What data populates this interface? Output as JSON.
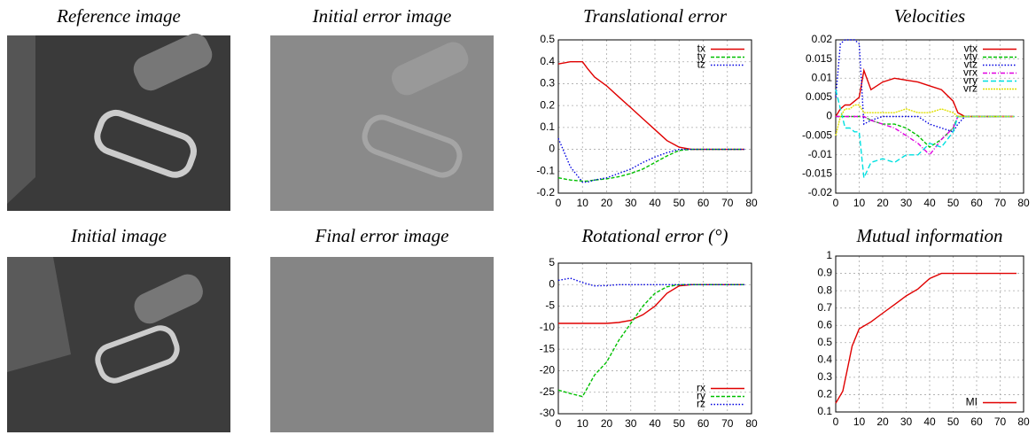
{
  "images": [
    {
      "title": "Reference image"
    },
    {
      "title": "Initial error image"
    },
    {
      "title": "Initial image"
    },
    {
      "title": "Final error image"
    }
  ],
  "chart_data": [
    {
      "type": "line",
      "title": "Translational error",
      "legend": "top-right",
      "grid": true,
      "xlim": [
        0,
        80
      ],
      "xticks": [
        0,
        10,
        20,
        30,
        40,
        50,
        60,
        70,
        80
      ],
      "ylim": [
        -0.2,
        0.5
      ],
      "yticks": [
        -0.2,
        -0.1,
        0,
        0.1,
        0.2,
        0.3,
        0.4,
        0.5
      ],
      "x": [
        0,
        5,
        10,
        12,
        15,
        20,
        25,
        30,
        35,
        40,
        45,
        50,
        55,
        60,
        65,
        70,
        75,
        77
      ],
      "series": [
        {
          "name": "tx",
          "color": "#e00000",
          "values": [
            0.39,
            0.4,
            0.4,
            0.37,
            0.33,
            0.29,
            0.24,
            0.19,
            0.14,
            0.09,
            0.04,
            0.01,
            0,
            0,
            0,
            0,
            0,
            0
          ]
        },
        {
          "name": "ty",
          "color": "#00c000",
          "values": [
            -0.13,
            -0.14,
            -0.145,
            -0.145,
            -0.14,
            -0.135,
            -0.125,
            -0.11,
            -0.09,
            -0.06,
            -0.03,
            -0.005,
            0,
            0,
            0,
            0,
            0,
            0
          ]
        },
        {
          "name": "tz",
          "color": "#0000e0",
          "values": [
            0.05,
            -0.08,
            -0.15,
            -0.15,
            -0.14,
            -0.13,
            -0.11,
            -0.09,
            -0.06,
            -0.035,
            -0.015,
            0,
            0,
            0,
            0,
            0,
            0,
            0
          ]
        }
      ]
    },
    {
      "type": "line",
      "title": "Velocities",
      "legend": "top-right",
      "grid": true,
      "xlim": [
        0,
        80
      ],
      "xticks": [
        0,
        10,
        20,
        30,
        40,
        50,
        60,
        70,
        80
      ],
      "ylim": [
        -0.02,
        0.02
      ],
      "yticks": [
        -0.02,
        -0.015,
        -0.01,
        -0.005,
        0,
        0.005,
        0.01,
        0.015,
        0.02
      ],
      "x": [
        0,
        2,
        4,
        6,
        8,
        10,
        12,
        15,
        20,
        25,
        30,
        35,
        40,
        45,
        50,
        52,
        55,
        60,
        65,
        70,
        76
      ],
      "series": [
        {
          "name": "vtx",
          "color": "#e00000",
          "values": [
            0,
            0.002,
            0.003,
            0.003,
            0.004,
            0.005,
            0.012,
            0.007,
            0.009,
            0.01,
            0.0095,
            0.009,
            0.008,
            0.007,
            0.004,
            0.001,
            0,
            0,
            0,
            0,
            0
          ]
        },
        {
          "name": "vty",
          "color": "#00c000",
          "values": [
            0,
            0,
            0,
            0,
            0,
            0,
            0,
            -0.001,
            -0.002,
            -0.002,
            -0.003,
            -0.005,
            -0.008,
            -0.006,
            -0.003,
            0,
            0,
            0,
            0,
            0,
            0
          ]
        },
        {
          "name": "vtz",
          "color": "#0000e0",
          "values": [
            0.005,
            0.019,
            0.02,
            0.02,
            0.02,
            0.019,
            -0.002,
            -0.001,
            0,
            0,
            0,
            0,
            -0.002,
            -0.003,
            -0.004,
            -0.002,
            0,
            0,
            0,
            0,
            0
          ]
        },
        {
          "name": "vrx",
          "color": "#e000e0",
          "values": [
            0,
            0,
            0,
            0,
            0,
            0,
            0,
            -0.001,
            -0.002,
            -0.003,
            -0.005,
            -0.007,
            -0.01,
            -0.006,
            -0.003,
            0,
            0,
            0,
            0,
            0,
            0
          ]
        },
        {
          "name": "vry",
          "color": "#00e0e0",
          "values": [
            0.007,
            0.002,
            -0.003,
            -0.003,
            -0.004,
            -0.004,
            -0.016,
            -0.012,
            -0.011,
            -0.012,
            -0.01,
            -0.01,
            -0.007,
            -0.008,
            -0.004,
            0,
            0,
            0,
            0,
            0,
            0
          ]
        },
        {
          "name": "vrz",
          "color": "#e0e000",
          "values": [
            -0.005,
            0,
            0.002,
            0.002,
            0.003,
            0.003,
            0.001,
            0.001,
            0.001,
            0.001,
            0.002,
            0.001,
            0.001,
            0.002,
            0.001,
            0,
            0,
            0,
            0,
            0,
            0
          ]
        }
      ]
    },
    {
      "type": "line",
      "title": "Rotational error (°)",
      "legend": "bottom-right",
      "grid": true,
      "xlim": [
        0,
        80
      ],
      "xticks": [
        0,
        10,
        20,
        30,
        40,
        50,
        60,
        70,
        80
      ],
      "ylim": [
        -30,
        5
      ],
      "yticks": [
        -30,
        -25,
        -20,
        -15,
        -10,
        -5,
        0,
        5
      ],
      "x": [
        0,
        5,
        10,
        15,
        20,
        25,
        30,
        35,
        40,
        45,
        50,
        55,
        60,
        65,
        70,
        75,
        77
      ],
      "series": [
        {
          "name": "rx",
          "color": "#e00000",
          "values": [
            -9,
            -9,
            -9,
            -9,
            -9,
            -8.8,
            -8.3,
            -7,
            -5,
            -2,
            -0.3,
            0,
            0,
            0,
            0,
            0,
            0
          ]
        },
        {
          "name": "ry",
          "color": "#00c000",
          "values": [
            -24.5,
            -25.3,
            -26,
            -21,
            -18,
            -13,
            -9,
            -5,
            -2,
            -0.5,
            0,
            0,
            0,
            0,
            0,
            0,
            0
          ]
        },
        {
          "name": "rz",
          "color": "#0000e0",
          "values": [
            1,
            1.5,
            0.5,
            -0.3,
            -0.2,
            0,
            0,
            0,
            0,
            0,
            0,
            0,
            0,
            0,
            0,
            0,
            0
          ]
        }
      ]
    },
    {
      "type": "line",
      "title": "Mutual information",
      "legend": "bottom-right",
      "grid": true,
      "xlim": [
        0,
        80
      ],
      "xticks": [
        0,
        10,
        20,
        30,
        40,
        50,
        60,
        70,
        80
      ],
      "ylim": [
        0.1,
        1
      ],
      "yticks": [
        0.1,
        0.2,
        0.3,
        0.4,
        0.5,
        0.6,
        0.7,
        0.8,
        0.9,
        1
      ],
      "x": [
        0,
        3,
        5,
        7,
        10,
        15,
        20,
        25,
        30,
        35,
        40,
        45,
        50,
        55,
        60,
        65,
        70,
        75,
        77
      ],
      "series": [
        {
          "name": "MI",
          "color": "#e00000",
          "values": [
            0.15,
            0.22,
            0.35,
            0.48,
            0.58,
            0.62,
            0.67,
            0.72,
            0.77,
            0.81,
            0.87,
            0.9,
            0.9,
            0.9,
            0.9,
            0.9,
            0.9,
            0.9,
            0.9
          ]
        }
      ]
    }
  ]
}
